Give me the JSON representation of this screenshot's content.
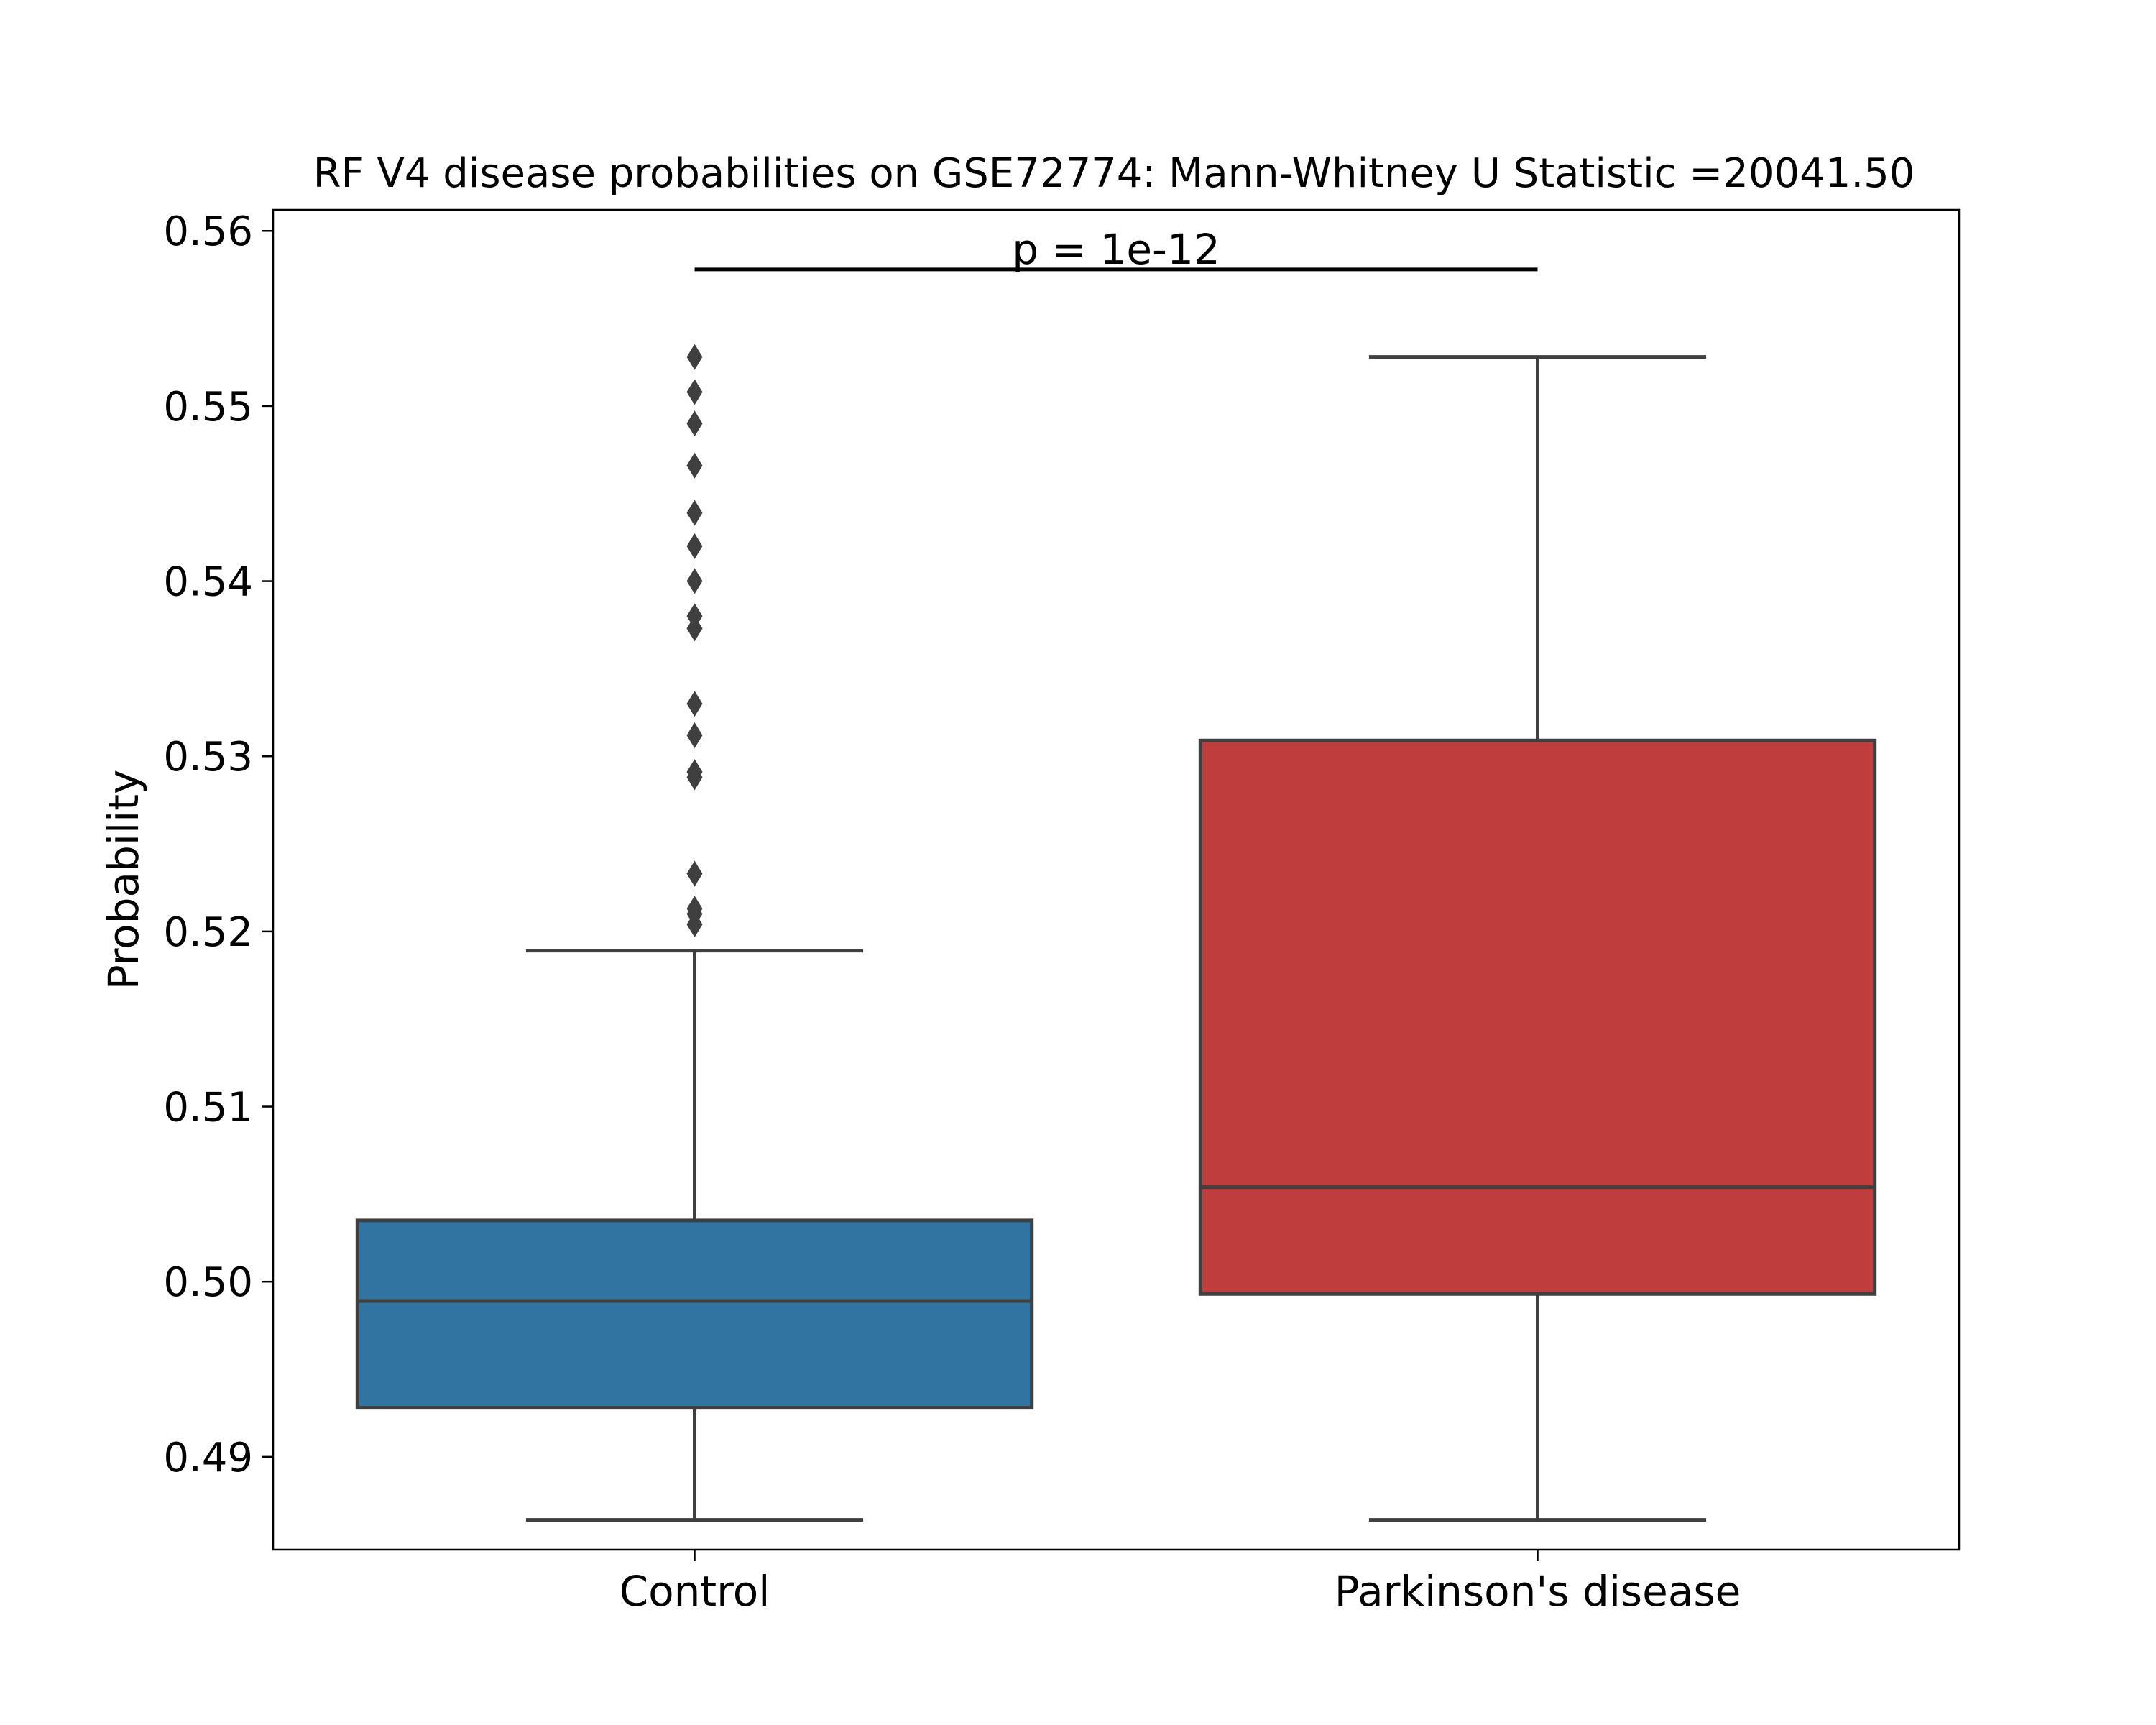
{
  "chart_data": {
    "type": "box",
    "title": "RF V4 disease probabilities on GSE72774: Mann-Whitney U Statistic =20041.50",
    "xlabel": "",
    "ylabel": "Probability",
    "ylim": [
      0.4847,
      0.5612
    ],
    "yticks": [
      {
        "value": 0.49,
        "label": "0.49"
      },
      {
        "value": 0.5,
        "label": "0.50"
      },
      {
        "value": 0.51,
        "label": "0.51"
      },
      {
        "value": 0.52,
        "label": "0.52"
      },
      {
        "value": 0.53,
        "label": "0.53"
      },
      {
        "value": 0.54,
        "label": "0.54"
      },
      {
        "value": 0.55,
        "label": "0.55"
      },
      {
        "value": 0.56,
        "label": "0.56"
      }
    ],
    "grid": false,
    "categories": [
      "Control",
      "Parkinson's disease"
    ],
    "boxes": [
      {
        "category": "Control",
        "color": "#3274a1",
        "whisker_low": 0.4864,
        "q1": 0.4928,
        "median": 0.4989,
        "q3": 0.5035,
        "whisker_high": 0.5189,
        "outliers": [
          0.5204,
          0.521,
          0.5213,
          0.5233,
          0.5288,
          0.5291,
          0.5312,
          0.533,
          0.5373,
          0.538,
          0.54,
          0.542,
          0.5439,
          0.5466,
          0.549,
          0.5508,
          0.5528
        ]
      },
      {
        "category": "Parkinson's disease",
        "color": "#c03d3e",
        "whisker_low": 0.4864,
        "q1": 0.4993,
        "median": 0.5054,
        "q3": 0.5309,
        "whisker_high": 0.5528,
        "outliers": []
      }
    ],
    "annotation": {
      "text": "p = 1e-12",
      "between": [
        "Control",
        "Parkinson's disease"
      ],
      "y": 0.5578
    },
    "line_color": "#3f3f3f"
  }
}
